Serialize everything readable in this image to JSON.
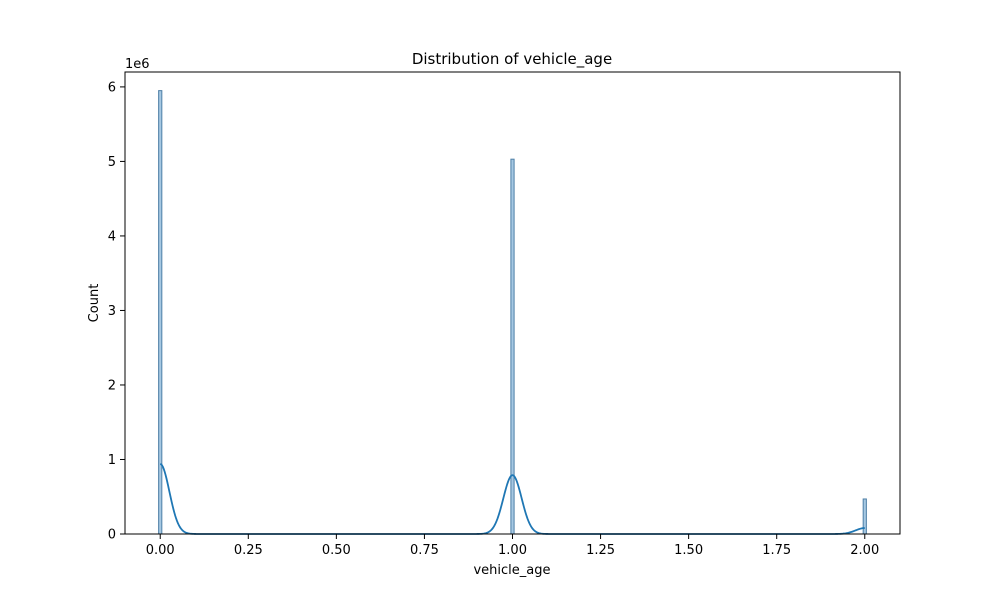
{
  "chart_data": {
    "type": "bar",
    "subtype": "histogram-with-kde",
    "title": "Distribution of vehicle_age",
    "xlabel": "vehicle_age",
    "ylabel": "Count",
    "y_offset_label": "1e6",
    "xlim": [
      -0.1,
      2.1
    ],
    "ylim": [
      0,
      6.2
    ],
    "x_ticks": [
      0.0,
      0.25,
      0.5,
      0.75,
      1.0,
      1.25,
      1.5,
      1.75,
      2.0
    ],
    "x_tick_labels": [
      "0.00",
      "0.25",
      "0.50",
      "0.75",
      "1.00",
      "1.25",
      "1.50",
      "1.75",
      "2.00"
    ],
    "y_ticks": [
      0,
      1,
      2,
      3,
      4,
      5,
      6
    ],
    "y_tick_labels": [
      "0",
      "1",
      "2",
      "3",
      "4",
      "5",
      "6"
    ],
    "grid": false,
    "legend": "none",
    "bars": [
      {
        "x": 0.0,
        "value": 5.95
      },
      {
        "x": 1.0,
        "value": 5.03
      },
      {
        "x": 2.0,
        "value": 0.47
      }
    ],
    "kde": {
      "peaks": [
        {
          "x": 0.0,
          "value": 0.94
        },
        {
          "x": 1.0,
          "value": 0.79
        },
        {
          "x": 2.0,
          "value": 0.08
        }
      ],
      "bandwidth": 0.026
    },
    "colors": {
      "bar_fill": "#a6c8e2",
      "bar_edge": "#4e7fa6",
      "kde_line": "#1f77b4"
    }
  }
}
